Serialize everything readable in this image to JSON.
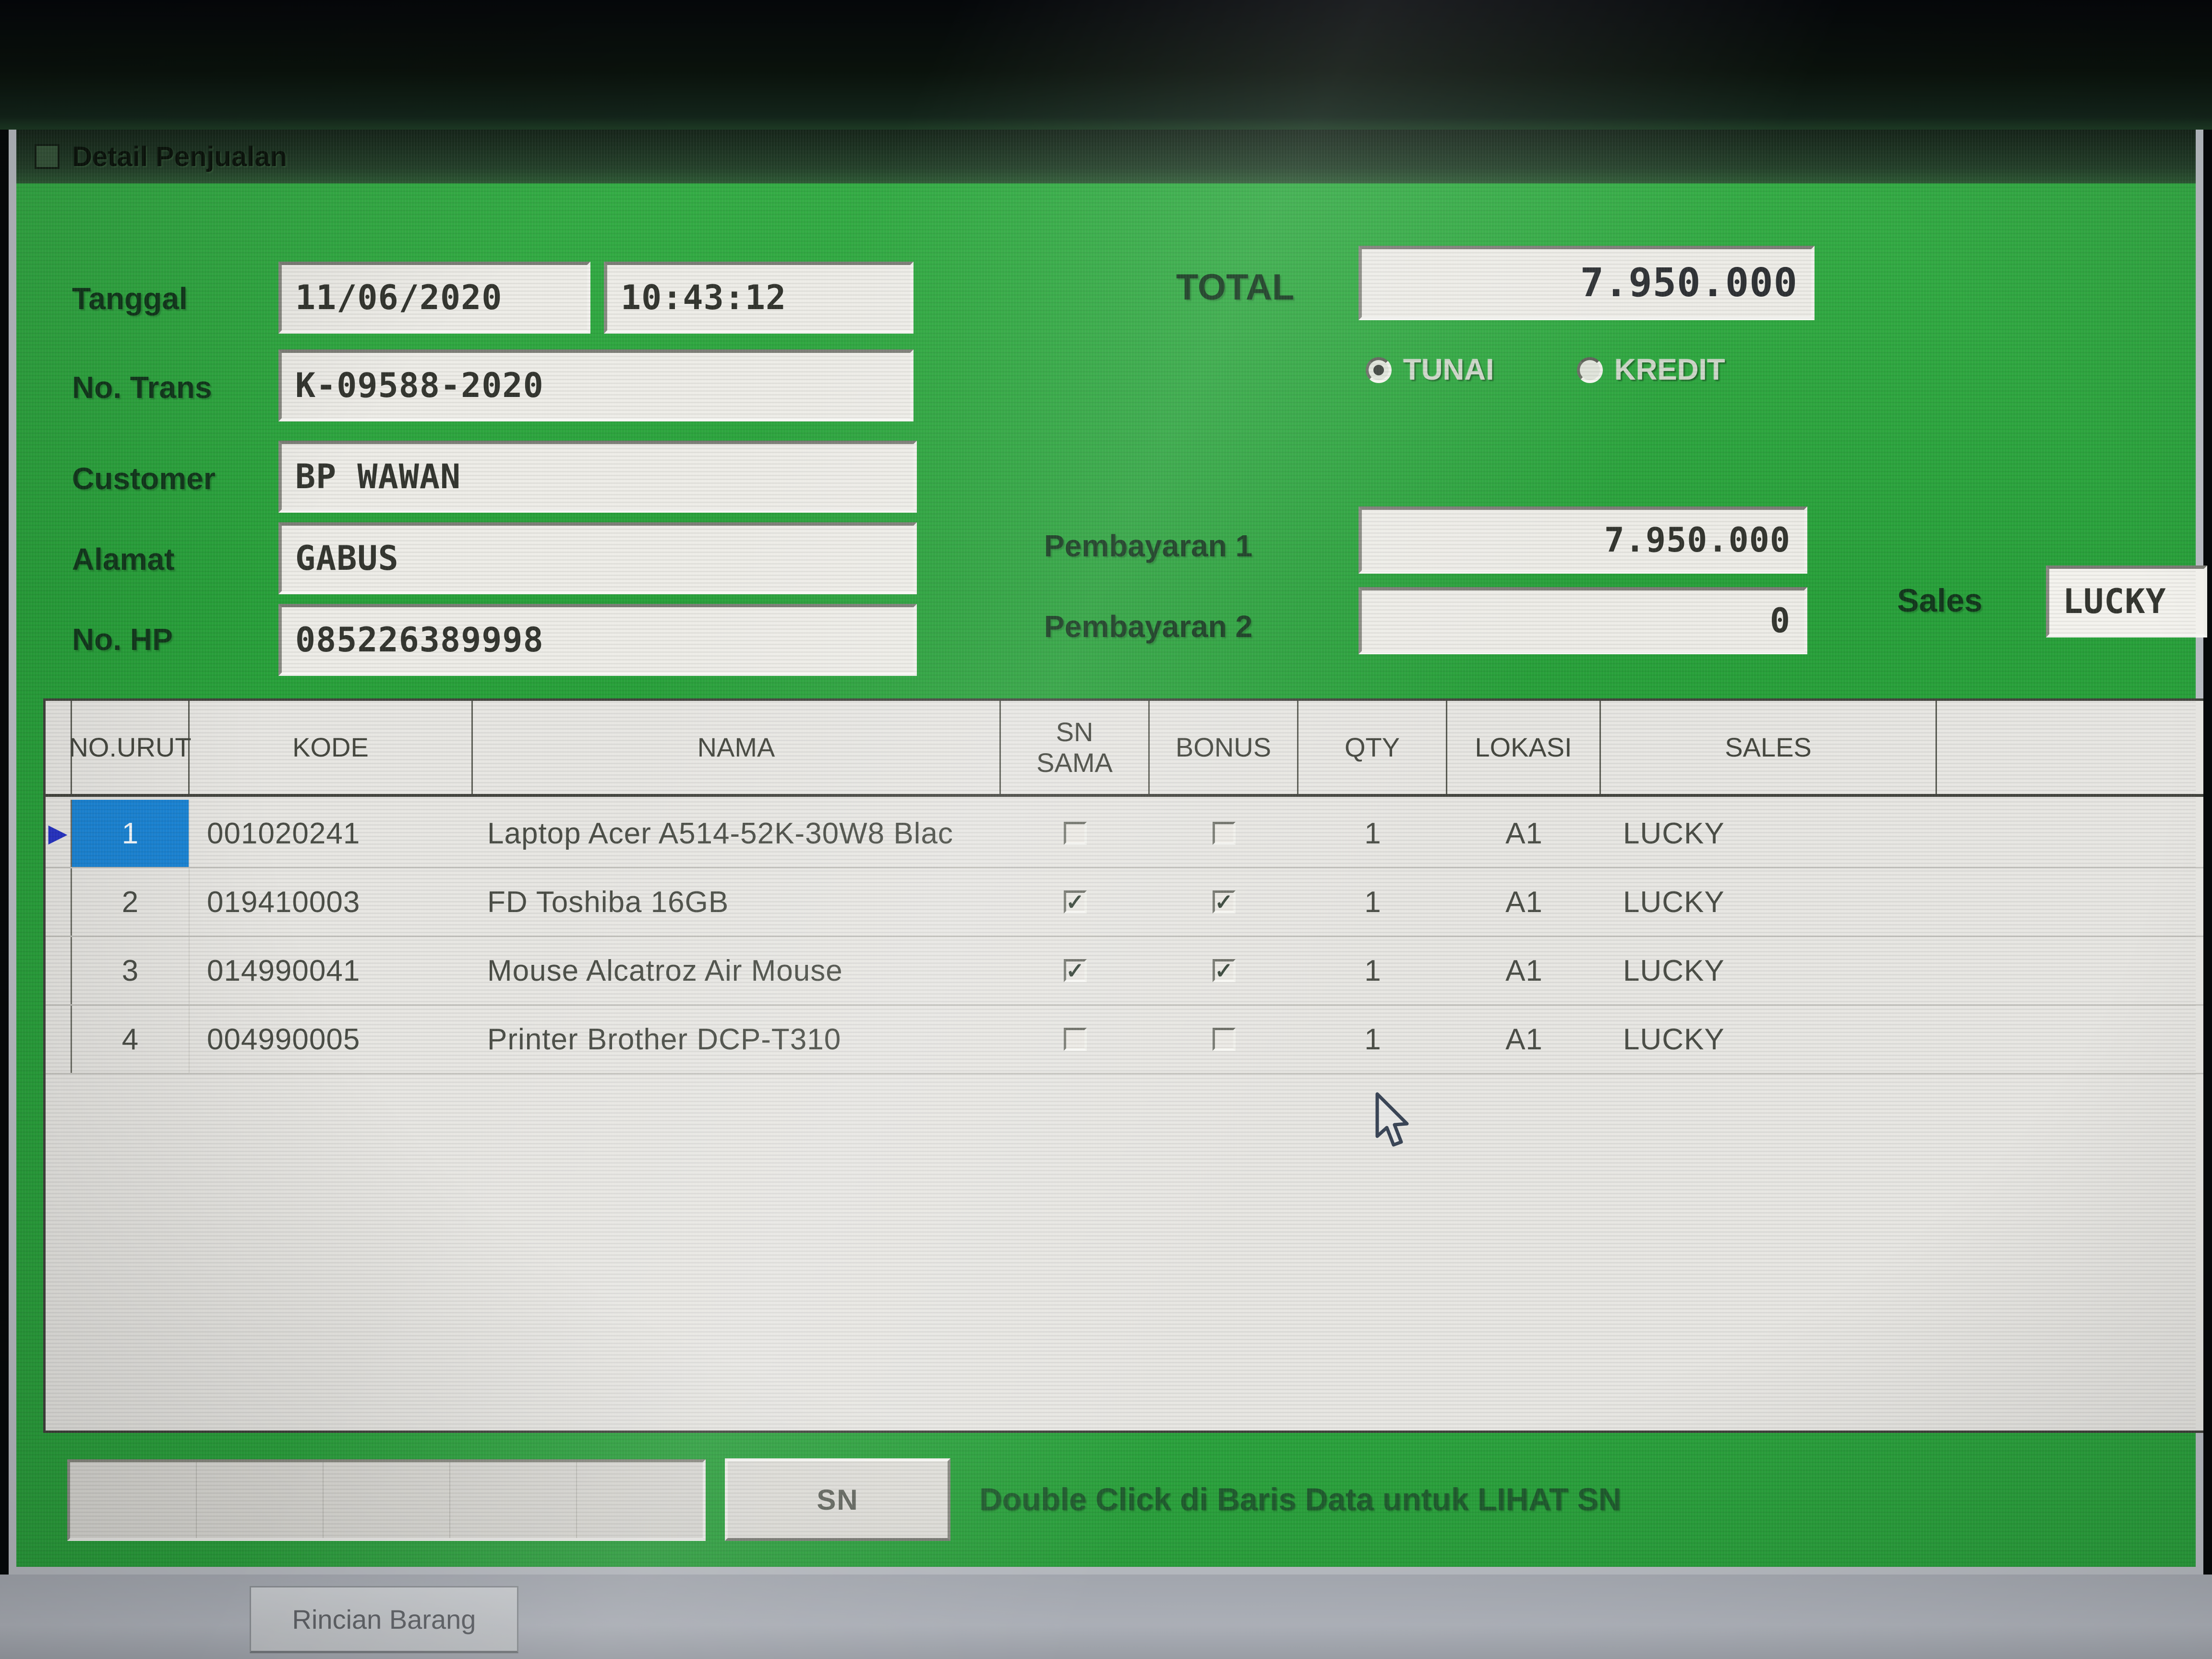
{
  "window": {
    "title": "Detail Penjualan"
  },
  "form": {
    "tanggal_label": "Tanggal",
    "tanggal_date": "11/06/2020",
    "tanggal_time": "10:43:12",
    "no_trans_label": "No. Trans",
    "no_trans": "K-09588-2020",
    "customer_label": "Customer",
    "customer": "BP WAWAN",
    "alamat_label": "Alamat",
    "alamat": "GABUS",
    "no_hp_label": "No. HP",
    "no_hp": "085226389998"
  },
  "payment": {
    "total_label": "TOTAL",
    "total": "7.950.000",
    "tunai_label": "TUNAI",
    "kredit_label": "KREDIT",
    "selected_method": "TUNAI",
    "pembayaran1_label": "Pembayaran 1",
    "pembayaran1": "7.950.000",
    "pembayaran2_label": "Pembayaran 2",
    "pembayaran2": "0",
    "sales_label": "Sales",
    "sales": "LUCKY"
  },
  "table": {
    "headers": {
      "no_urut": "NO.URUT",
      "kode": "KODE",
      "nama": "NAMA",
      "sn_sama": "SN SAMA",
      "bonus": "BONUS",
      "qty": "QTY",
      "lokasi": "LOKASI",
      "sales": "SALES"
    },
    "rows": [
      {
        "no": "1",
        "kode": "001020241",
        "nama": "Laptop Acer A514-52K-30W8 Blac",
        "sn_sama": false,
        "bonus": false,
        "qty": "1",
        "lokasi": "A1",
        "sales": "LUCKY",
        "selected": true
      },
      {
        "no": "2",
        "kode": "019410003",
        "nama": "FD Toshiba 16GB",
        "sn_sama": true,
        "bonus": true,
        "qty": "1",
        "lokasi": "A1",
        "sales": "LUCKY",
        "selected": false
      },
      {
        "no": "3",
        "kode": "014990041",
        "nama": "Mouse Alcatroz Air Mouse",
        "sn_sama": true,
        "bonus": true,
        "qty": "1",
        "lokasi": "A1",
        "sales": "LUCKY",
        "selected": false
      },
      {
        "no": "4",
        "kode": "004990005",
        "nama": "Printer Brother DCP-T310",
        "sn_sama": false,
        "bonus": false,
        "qty": "1",
        "lokasi": "A1",
        "sales": "LUCKY",
        "selected": false
      }
    ]
  },
  "footer": {
    "sn_button": "SN",
    "hint": "Double Click di Baris Data untuk LIHAT SN"
  },
  "bottom": {
    "tab": "Rincian Barang"
  },
  "colors": {
    "body_green": "#2aa13c",
    "selection_blue": "#1b84d4",
    "field_bg": "#edece7",
    "pointer_blue": "#2733c4"
  }
}
